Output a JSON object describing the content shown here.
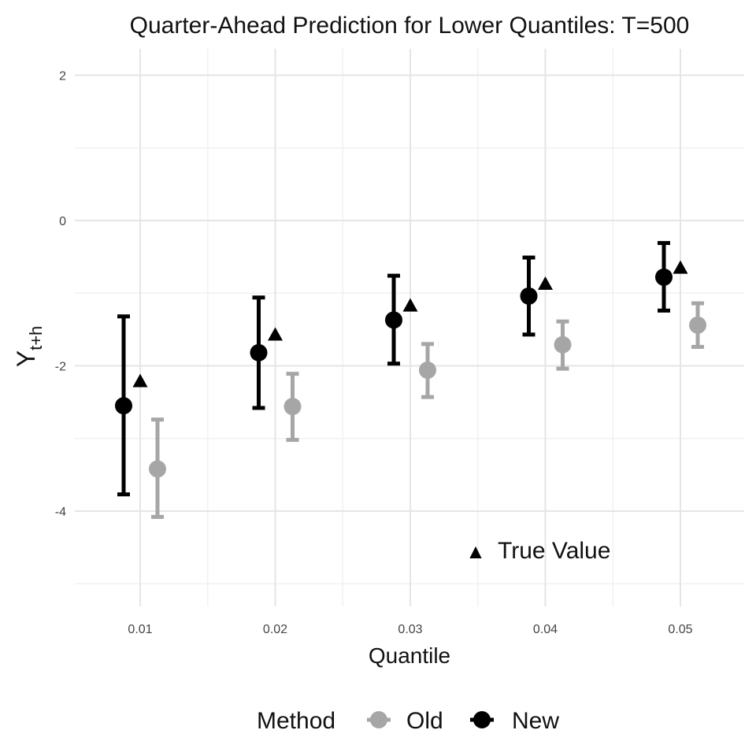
{
  "chart_data": {
    "type": "scatter",
    "title": "Quarter-Ahead Prediction for Lower Quantiles: T=500",
    "xlabel": "Quantile",
    "ylabel": "Y",
    "ylabel_subscript": "t+h",
    "categories": [
      "0.01",
      "0.02",
      "0.03",
      "0.04",
      "0.05"
    ],
    "ylim": [
      -5.3,
      2.3
    ],
    "yticks": [
      2,
      0,
      -2,
      -4
    ],
    "ytick_labels": [
      "2",
      "0",
      "-2",
      "-4"
    ],
    "series": [
      {
        "name": "New",
        "color": "#000000",
        "points": [
          {
            "x": "0.01",
            "y": -2.55,
            "lower": -3.77,
            "upper": -1.32
          },
          {
            "x": "0.02",
            "y": -1.82,
            "lower": -2.58,
            "upper": -1.06
          },
          {
            "x": "0.03",
            "y": -1.37,
            "lower": -1.97,
            "upper": -0.76
          },
          {
            "x": "0.04",
            "y": -1.04,
            "lower": -1.57,
            "upper": -0.51
          },
          {
            "x": "0.05",
            "y": -0.78,
            "lower": -1.24,
            "upper": -0.31
          }
        ]
      },
      {
        "name": "Old",
        "color": "#a6a6a6",
        "points": [
          {
            "x": "0.01",
            "y": -3.42,
            "lower": -4.08,
            "upper": -2.74
          },
          {
            "x": "0.02",
            "y": -2.56,
            "lower": -3.02,
            "upper": -2.11
          },
          {
            "x": "0.03",
            "y": -2.06,
            "lower": -2.43,
            "upper": -1.7
          },
          {
            "x": "0.04",
            "y": -1.71,
            "lower": -2.04,
            "upper": -1.39
          },
          {
            "x": "0.05",
            "y": -1.44,
            "lower": -1.74,
            "upper": -1.14
          }
        ]
      },
      {
        "name": "True Value",
        "color": "#000000",
        "marker": "triangle",
        "points": [
          {
            "x": "0.01",
            "y": -2.22
          },
          {
            "x": "0.02",
            "y": -1.58
          },
          {
            "x": "0.03",
            "y": -1.18
          },
          {
            "x": "0.04",
            "y": -0.88
          },
          {
            "x": "0.05",
            "y": -0.66
          }
        ]
      }
    ],
    "annotation": {
      "text": "True Value",
      "symbol": "▲",
      "x": "0.035",
      "y": -4.5
    },
    "legend": {
      "title": "Method",
      "entries": [
        {
          "name": "Old",
          "color": "#a6a6a6"
        },
        {
          "name": "New",
          "color": "#000000"
        }
      ],
      "position": "bottom"
    },
    "grid": true
  }
}
